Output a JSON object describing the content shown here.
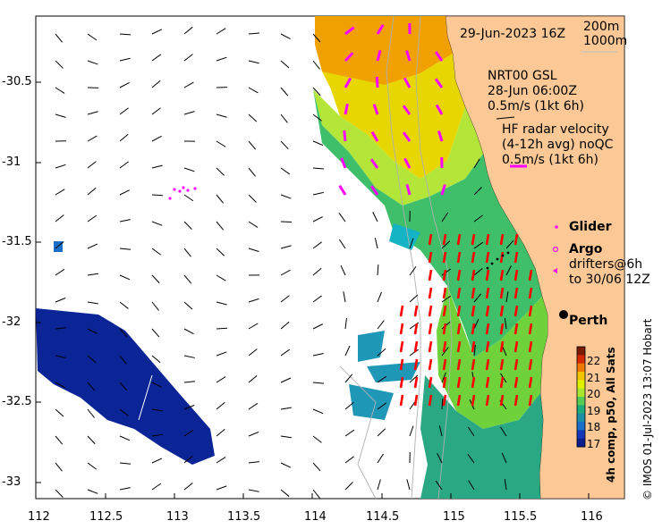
{
  "map": {
    "timestamp": "29-Jun-2023 16Z",
    "depth_contours": [
      "200m",
      "1000m"
    ],
    "model": {
      "name": "NRT00 GSL",
      "time": "28-Jun 06:00Z",
      "scale": "0.5m/s (1kt 6h)"
    },
    "radar": {
      "line1": "HF radar velocity",
      "line2": "(4-12h avg) noQC",
      "scale": "0.5m/s (1kt 6h)"
    },
    "legend": {
      "glider": "Glider",
      "argo": "Argo",
      "drifters_line1": "drifters@6h",
      "drifters_line2": "to 30/06 12Z",
      "city": "Perth"
    },
    "colorbar": {
      "title": "4h comp, p50, All Sats",
      "ticks": [
        "22",
        "21",
        "20",
        "19",
        "18",
        "17"
      ],
      "colors": [
        "#7a1a00",
        "#d22a00",
        "#f07a00",
        "#f2c400",
        "#dff000",
        "#a8e632",
        "#56cc55",
        "#1faa7a",
        "#1c8fa6",
        "#1a6fc8",
        "#1537b8",
        "#0a1f8c"
      ]
    },
    "axes": {
      "y_ticks": [
        "-30.5",
        "-31",
        "-31.5",
        "-32",
        "-32.5",
        "-33"
      ],
      "x_ticks": [
        "112",
        "112.5",
        "113",
        "113.5",
        "114",
        "114.5",
        "115",
        "115.5",
        "116"
      ]
    },
    "credit": "© IMOS 01-Jul-2023 13:07 Hobart",
    "colors": {
      "land": "#fbc896",
      "model_arrow": "#000000",
      "radar_arrow": "#ff0000",
      "drifter": "#ff00ff",
      "glider": "#ff00ff"
    }
  }
}
